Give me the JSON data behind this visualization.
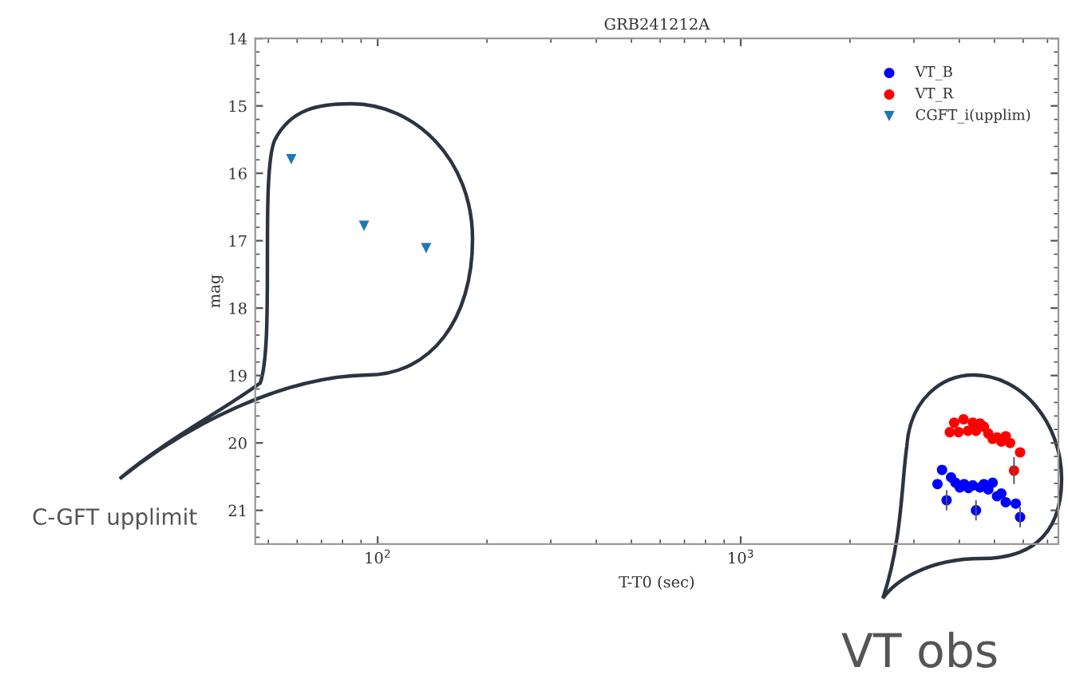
{
  "chart_data": {
    "type": "scatter",
    "title": "GRB241212A",
    "xlabel": "T-T0 (sec)",
    "ylabel": "mag",
    "log": "x",
    "xlim": [
      46,
      7500
    ],
    "xticks": [
      {
        "value": 100,
        "label": "10$^{2}$"
      },
      {
        "value": 1000,
        "label": "10$^{3}$"
      }
    ],
    "ylim": [
      21.5,
      14
    ],
    "yticks": [
      14,
      15,
      16,
      17,
      18,
      19,
      20,
      21
    ],
    "grid": false,
    "legend": "top right",
    "annotations": [
      "C-GFT upplimit",
      "VT obs"
    ],
    "series": [
      {
        "name": "VT_B",
        "color": "#0000ff",
        "marker": "circle",
        "x": [
          3483,
          3586,
          3691,
          3797,
          3904,
          4013,
          4125,
          4240,
          4357,
          4447,
          4560,
          4677,
          4808,
          4943,
          5082,
          5224,
          5371,
          5722,
          5883
        ],
        "values": [
          20.61,
          20.4,
          20.85,
          20.51,
          20.59,
          20.66,
          20.61,
          20.67,
          20.63,
          21.0,
          20.66,
          20.61,
          20.69,
          20.59,
          20.79,
          20.75,
          20.88,
          20.9,
          21.1
        ],
        "errors": [
          null,
          null,
          0.15,
          null,
          null,
          null,
          null,
          null,
          null,
          0.15,
          null,
          null,
          null,
          null,
          null,
          null,
          null,
          null,
          0.15
        ]
      },
      {
        "name": "VT_R",
        "color": "#ff0000",
        "marker": "circle",
        "x": [
          3767,
          3873,
          3981,
          4110,
          4227,
          4357,
          4447,
          4560,
          4677,
          4808,
          4943,
          5082,
          5224,
          5371,
          5521,
          5660,
          5883
        ],
        "values": [
          19.84,
          19.7,
          19.84,
          19.65,
          19.82,
          19.7,
          19.82,
          19.71,
          19.76,
          19.86,
          19.94,
          19.92,
          19.98,
          19.9,
          20.0,
          20.41,
          20.14
        ],
        "errors": [
          null,
          null,
          null,
          null,
          null,
          null,
          null,
          null,
          null,
          null,
          null,
          null,
          null,
          null,
          null,
          0.2,
          null
        ]
      },
      {
        "name": "CGFT_i(upplim)",
        "color": "#1f77b4",
        "marker": "triangle",
        "x": [
          57.8,
          91.7,
          136
        ],
        "values": [
          15.79,
          16.78,
          17.11
        ]
      }
    ]
  }
}
